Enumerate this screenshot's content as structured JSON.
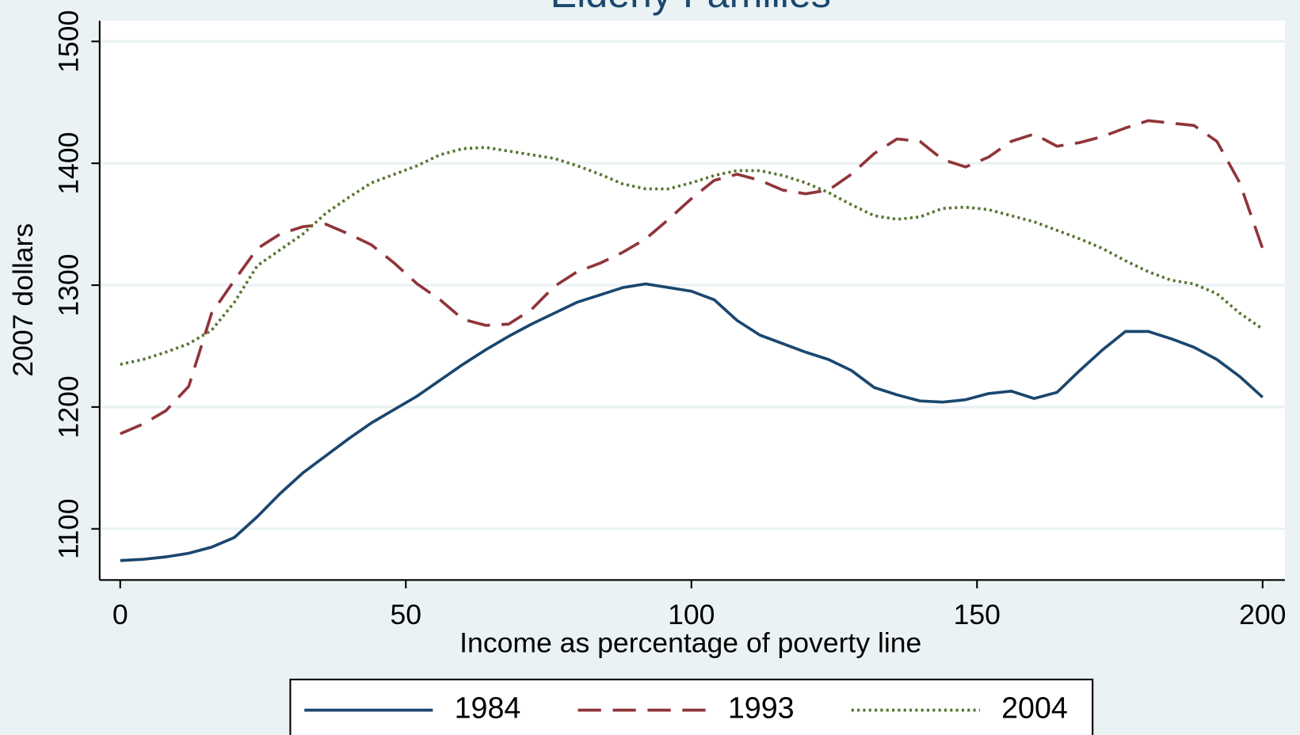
{
  "chart_data": {
    "type": "line",
    "title": "Elderly Families",
    "xlabel": "Income as percentage of poverty line",
    "ylabel": "2007 dollars",
    "x": [
      0,
      4,
      8,
      12,
      16,
      20,
      24,
      28,
      32,
      36,
      40,
      44,
      48,
      52,
      56,
      60,
      64,
      68,
      72,
      76,
      80,
      84,
      88,
      92,
      96,
      100,
      104,
      108,
      112,
      116,
      120,
      124,
      128,
      132,
      136,
      140,
      144,
      148,
      152,
      156,
      160,
      164,
      168,
      172,
      176,
      180,
      184,
      188,
      192,
      196,
      200
    ],
    "series": [
      {
        "name": "1984",
        "color": "#1a476f",
        "style": "solid",
        "values": [
          1074,
          1075,
          1077,
          1080,
          1085,
          1093,
          1110,
          1129,
          1146,
          1160,
          1174,
          1187,
          1198,
          1209,
          1222,
          1235,
          1247,
          1258,
          1268,
          1277,
          1286,
          1292,
          1298,
          1301,
          1298,
          1295,
          1288,
          1271,
          1259,
          1252,
          1245,
          1239,
          1230,
          1216,
          1210,
          1205,
          1204,
          1206,
          1211,
          1213,
          1207,
          1212,
          1230,
          1247,
          1262,
          1262,
          1256,
          1249,
          1239,
          1225,
          1208
        ]
      },
      {
        "name": "1993",
        "color": "#90353b",
        "style": "dashed",
        "values": [
          1178,
          1186,
          1197,
          1217,
          1277,
          1304,
          1330,
          1342,
          1348,
          1350,
          1342,
          1333,
          1318,
          1301,
          1288,
          1272,
          1267,
          1268,
          1280,
          1299,
          1311,
          1318,
          1327,
          1338,
          1354,
          1371,
          1386,
          1391,
          1386,
          1378,
          1375,
          1378,
          1391,
          1408,
          1420,
          1418,
          1403,
          1397,
          1405,
          1418,
          1424,
          1414,
          1417,
          1422,
          1429,
          1435,
          1433,
          1431,
          1418,
          1384,
          1330
        ]
      },
      {
        "name": "2004",
        "color": "#55752f",
        "style": "dotted",
        "values": [
          1235,
          1239,
          1245,
          1252,
          1263,
          1286,
          1316,
          1329,
          1342,
          1359,
          1372,
          1384,
          1391,
          1398,
          1407,
          1412,
          1413,
          1410,
          1407,
          1404,
          1398,
          1391,
          1383,
          1379,
          1379,
          1384,
          1390,
          1394,
          1394,
          1390,
          1384,
          1376,
          1366,
          1357,
          1354,
          1356,
          1363,
          1364,
          1362,
          1357,
          1352,
          1345,
          1338,
          1330,
          1320,
          1311,
          1304,
          1301,
          1293,
          1277,
          1264
        ]
      }
    ],
    "xlim": [
      -3.6,
      203.9
    ],
    "ylim": [
      1058,
      1517
    ],
    "xticks": [
      0,
      50,
      100,
      150,
      200
    ],
    "yticks": [
      1100,
      1200,
      1300,
      1400,
      1500
    ],
    "grid": true,
    "legend": "bottom"
  }
}
